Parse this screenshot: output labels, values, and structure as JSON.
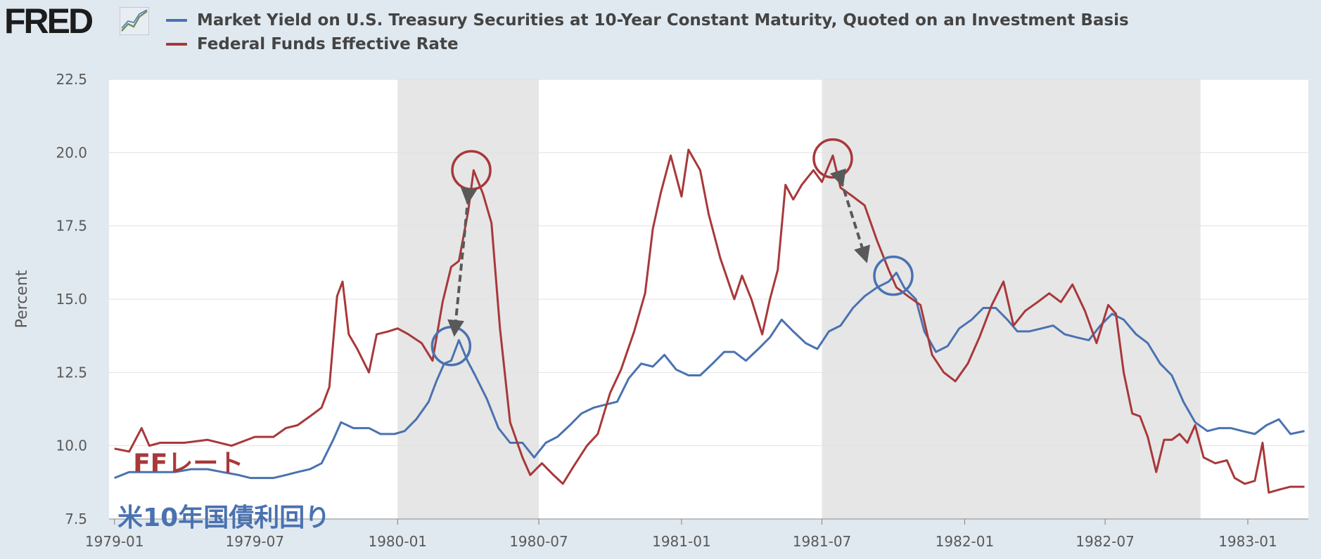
{
  "brand": {
    "logo_text": "FRED"
  },
  "colors": {
    "teny": "#4a72b0",
    "ffr": "#a8383a",
    "recession": "#e6e6e6",
    "grid": "#e2e2e2",
    "plot_bg": "#ffffff",
    "arrow": "#595959"
  },
  "chart_data": {
    "type": "line",
    "title": "",
    "xlabel": "",
    "ylabel": "Percent",
    "ylim": [
      7.5,
      22.5
    ],
    "xlim": [
      "1978-12-25",
      "1983-03-20"
    ],
    "yticks": [
      "7.5",
      "10.0",
      "12.5",
      "15.0",
      "17.5",
      "20.0",
      "22.5"
    ],
    "xticks": [
      "1979-01",
      "1979-07",
      "1980-01",
      "1980-07",
      "1981-01",
      "1981-07",
      "1982-01",
      "1982-07",
      "1983-01"
    ],
    "grid": true,
    "legend_position": "top-left",
    "recessions": [
      [
        "1980-01-01",
        "1980-07-01"
      ],
      [
        "1981-07-01",
        "1982-11-01"
      ]
    ],
    "series": [
      {
        "name": "Market Yield on U.S. Treasury Securities at 10-Year Constant Maturity, Quoted on an Investment Basis",
        "key": "teny",
        "points": [
          [
            "1979-01-01",
            8.9
          ],
          [
            "1979-01-20",
            9.1
          ],
          [
            "1979-02-10",
            9.1
          ],
          [
            "1979-03-01",
            9.1
          ],
          [
            "1979-03-20",
            9.1
          ],
          [
            "1979-04-10",
            9.2
          ],
          [
            "1979-05-01",
            9.2
          ],
          [
            "1979-05-20",
            9.1
          ],
          [
            "1979-06-10",
            9.0
          ],
          [
            "1979-06-25",
            8.9
          ],
          [
            "1979-07-10",
            8.9
          ],
          [
            "1979-07-25",
            8.9
          ],
          [
            "1979-08-10",
            9.0
          ],
          [
            "1979-08-25",
            9.1
          ],
          [
            "1979-09-10",
            9.2
          ],
          [
            "1979-09-25",
            9.4
          ],
          [
            "1979-10-10",
            10.2
          ],
          [
            "1979-10-20",
            10.8
          ],
          [
            "1979-11-05",
            10.6
          ],
          [
            "1979-11-25",
            10.6
          ],
          [
            "1979-12-10",
            10.4
          ],
          [
            "1979-12-28",
            10.4
          ],
          [
            "1980-01-10",
            10.5
          ],
          [
            "1980-01-25",
            10.9
          ],
          [
            "1980-02-10",
            11.5
          ],
          [
            "1980-02-20",
            12.2
          ],
          [
            "1980-03-01",
            12.8
          ],
          [
            "1980-03-10",
            12.9
          ],
          [
            "1980-03-20",
            13.6
          ],
          [
            "1980-03-31",
            12.9
          ],
          [
            "1980-04-10",
            12.4
          ],
          [
            "1980-04-25",
            11.6
          ],
          [
            "1980-05-10",
            10.6
          ],
          [
            "1980-05-25",
            10.1
          ],
          [
            "1980-06-10",
            10.1
          ],
          [
            "1980-06-25",
            9.6
          ],
          [
            "1980-07-10",
            10.1
          ],
          [
            "1980-07-25",
            10.3
          ],
          [
            "1980-08-10",
            10.7
          ],
          [
            "1980-08-25",
            11.1
          ],
          [
            "1980-09-10",
            11.3
          ],
          [
            "1980-09-25",
            11.4
          ],
          [
            "1980-10-10",
            11.5
          ],
          [
            "1980-10-25",
            12.3
          ],
          [
            "1980-11-10",
            12.8
          ],
          [
            "1980-11-25",
            12.7
          ],
          [
            "1980-12-10",
            13.1
          ],
          [
            "1980-12-25",
            12.6
          ],
          [
            "1981-01-10",
            12.4
          ],
          [
            "1981-01-25",
            12.4
          ],
          [
            "1981-02-10",
            12.8
          ],
          [
            "1981-02-25",
            13.2
          ],
          [
            "1981-03-10",
            13.2
          ],
          [
            "1981-03-25",
            12.9
          ],
          [
            "1981-04-10",
            13.3
          ],
          [
            "1981-04-25",
            13.7
          ],
          [
            "1981-05-10",
            14.3
          ],
          [
            "1981-05-25",
            13.9
          ],
          [
            "1981-06-10",
            13.5
          ],
          [
            "1981-06-25",
            13.3
          ],
          [
            "1981-07-10",
            13.9
          ],
          [
            "1981-07-25",
            14.1
          ],
          [
            "1981-08-10",
            14.7
          ],
          [
            "1981-08-25",
            15.1
          ],
          [
            "1981-09-10",
            15.4
          ],
          [
            "1981-09-25",
            15.6
          ],
          [
            "1981-10-05",
            15.9
          ],
          [
            "1981-10-15",
            15.4
          ],
          [
            "1981-10-30",
            15.0
          ],
          [
            "1981-11-10",
            13.9
          ],
          [
            "1981-11-25",
            13.2
          ],
          [
            "1981-12-10",
            13.4
          ],
          [
            "1981-12-25",
            14.0
          ],
          [
            "1982-01-10",
            14.3
          ],
          [
            "1982-01-25",
            14.7
          ],
          [
            "1982-02-10",
            14.7
          ],
          [
            "1982-02-25",
            14.3
          ],
          [
            "1982-03-10",
            13.9
          ],
          [
            "1982-03-25",
            13.9
          ],
          [
            "1982-04-10",
            14.0
          ],
          [
            "1982-04-25",
            14.1
          ],
          [
            "1982-05-10",
            13.8
          ],
          [
            "1982-05-25",
            13.7
          ],
          [
            "1982-06-10",
            13.6
          ],
          [
            "1982-06-25",
            14.1
          ],
          [
            "1982-07-10",
            14.5
          ],
          [
            "1982-07-25",
            14.3
          ],
          [
            "1982-08-10",
            13.8
          ],
          [
            "1982-08-25",
            13.5
          ],
          [
            "1982-09-10",
            12.8
          ],
          [
            "1982-09-25",
            12.4
          ],
          [
            "1982-10-10",
            11.5
          ],
          [
            "1982-10-25",
            10.8
          ],
          [
            "1982-11-10",
            10.5
          ],
          [
            "1982-11-25",
            10.6
          ],
          [
            "1982-12-10",
            10.6
          ],
          [
            "1982-12-25",
            10.5
          ],
          [
            "1983-01-10",
            10.4
          ],
          [
            "1983-01-25",
            10.7
          ],
          [
            "1983-02-10",
            10.9
          ],
          [
            "1983-02-25",
            10.4
          ],
          [
            "1983-03-15",
            10.5
          ]
        ]
      },
      {
        "name": "Federal Funds Effective Rate",
        "key": "ffr",
        "points": [
          [
            "1979-01-01",
            9.9
          ],
          [
            "1979-01-20",
            9.8
          ],
          [
            "1979-02-05",
            10.6
          ],
          [
            "1979-02-15",
            10.0
          ],
          [
            "1979-03-01",
            10.1
          ],
          [
            "1979-04-01",
            10.1
          ],
          [
            "1979-05-01",
            10.2
          ],
          [
            "1979-06-01",
            10.0
          ],
          [
            "1979-07-01",
            10.3
          ],
          [
            "1979-07-25",
            10.3
          ],
          [
            "1979-08-10",
            10.6
          ],
          [
            "1979-08-25",
            10.7
          ],
          [
            "1979-09-10",
            11.0
          ],
          [
            "1979-09-25",
            11.3
          ],
          [
            "1979-10-05",
            12.0
          ],
          [
            "1979-10-15",
            15.1
          ],
          [
            "1979-10-22",
            15.6
          ],
          [
            "1979-10-30",
            13.8
          ],
          [
            "1979-11-10",
            13.3
          ],
          [
            "1979-11-25",
            12.5
          ],
          [
            "1979-12-05",
            13.8
          ],
          [
            "1979-12-20",
            13.9
          ],
          [
            "1980-01-01",
            14.0
          ],
          [
            "1980-01-15",
            13.8
          ],
          [
            "1980-02-01",
            13.5
          ],
          [
            "1980-02-15",
            12.9
          ],
          [
            "1980-02-28",
            14.9
          ],
          [
            "1980-03-10",
            16.1
          ],
          [
            "1980-03-20",
            16.3
          ],
          [
            "1980-04-01",
            18.0
          ],
          [
            "1980-04-08",
            19.4
          ],
          [
            "1980-04-20",
            18.6
          ],
          [
            "1980-05-01",
            17.6
          ],
          [
            "1980-05-12",
            14.0
          ],
          [
            "1980-05-25",
            10.8
          ],
          [
            "1980-06-10",
            9.6
          ],
          [
            "1980-06-20",
            9.0
          ],
          [
            "1980-07-05",
            9.4
          ],
          [
            "1980-07-20",
            9.0
          ],
          [
            "1980-08-01",
            8.7
          ],
          [
            "1980-08-15",
            9.3
          ],
          [
            "1980-09-01",
            10.0
          ],
          [
            "1980-09-15",
            10.4
          ],
          [
            "1980-10-01",
            11.8
          ],
          [
            "1980-10-15",
            12.6
          ],
          [
            "1980-11-01",
            13.9
          ],
          [
            "1980-11-15",
            15.2
          ],
          [
            "1980-11-25",
            17.4
          ],
          [
            "1980-12-05",
            18.6
          ],
          [
            "1980-12-18",
            19.9
          ],
          [
            "1981-01-01",
            18.5
          ],
          [
            "1981-01-10",
            20.1
          ],
          [
            "1981-01-25",
            19.4
          ],
          [
            "1981-02-05",
            17.9
          ],
          [
            "1981-02-20",
            16.4
          ],
          [
            "1981-03-10",
            15.0
          ],
          [
            "1981-03-20",
            15.8
          ],
          [
            "1981-04-01",
            15.0
          ],
          [
            "1981-04-15",
            13.8
          ],
          [
            "1981-04-25",
            15.0
          ],
          [
            "1981-05-05",
            16.0
          ],
          [
            "1981-05-15",
            18.9
          ],
          [
            "1981-05-25",
            18.4
          ],
          [
            "1981-06-05",
            18.9
          ],
          [
            "1981-06-20",
            19.4
          ],
          [
            "1981-07-01",
            19.0
          ],
          [
            "1981-07-15",
            19.9
          ],
          [
            "1981-07-25",
            18.8
          ],
          [
            "1981-08-10",
            18.5
          ],
          [
            "1981-08-25",
            18.2
          ],
          [
            "1981-09-10",
            17.0
          ],
          [
            "1981-09-25",
            16.0
          ],
          [
            "1981-10-05",
            15.4
          ],
          [
            "1981-10-20",
            15.1
          ],
          [
            "1981-11-05",
            14.8
          ],
          [
            "1981-11-20",
            13.1
          ],
          [
            "1981-12-05",
            12.5
          ],
          [
            "1981-12-20",
            12.2
          ],
          [
            "1982-01-05",
            12.8
          ],
          [
            "1982-01-20",
            13.7
          ],
          [
            "1982-02-05",
            14.8
          ],
          [
            "1982-02-20",
            15.6
          ],
          [
            "1982-03-05",
            14.1
          ],
          [
            "1982-03-20",
            14.6
          ],
          [
            "1982-04-05",
            14.9
          ],
          [
            "1982-04-20",
            15.2
          ],
          [
            "1982-05-05",
            14.9
          ],
          [
            "1982-05-20",
            15.5
          ],
          [
            "1982-06-05",
            14.6
          ],
          [
            "1982-06-20",
            13.5
          ],
          [
            "1982-07-05",
            14.8
          ],
          [
            "1982-07-15",
            14.5
          ],
          [
            "1982-07-25",
            12.5
          ],
          [
            "1982-08-05",
            11.1
          ],
          [
            "1982-08-15",
            11.0
          ],
          [
            "1982-08-25",
            10.3
          ],
          [
            "1982-09-05",
            9.1
          ],
          [
            "1982-09-15",
            10.2
          ],
          [
            "1982-09-25",
            10.2
          ],
          [
            "1982-10-05",
            10.4
          ],
          [
            "1982-10-15",
            10.1
          ],
          [
            "1982-10-25",
            10.7
          ],
          [
            "1982-11-05",
            9.6
          ],
          [
            "1982-11-20",
            9.4
          ],
          [
            "1982-12-05",
            9.5
          ],
          [
            "1982-12-15",
            8.9
          ],
          [
            "1982-12-28",
            8.7
          ],
          [
            "1983-01-10",
            8.8
          ],
          [
            "1983-01-20",
            10.1
          ],
          [
            "1983-01-28",
            8.4
          ],
          [
            "1983-02-10",
            8.5
          ],
          [
            "1983-02-25",
            8.6
          ],
          [
            "1983-03-15",
            8.6
          ]
        ]
      }
    ],
    "annotations": [
      {
        "text": "FFレート",
        "key": "ffr",
        "x": "1979-01-25",
        "y": 9.4
      },
      {
        "text": "米10年国債利回り",
        "key": "teny",
        "x": "1979-01-05",
        "y": 7.55
      }
    ],
    "highlight_circles": [
      {
        "key": "teny",
        "x": "1980-03-10",
        "y": 13.4
      },
      {
        "key": "ffr",
        "x": "1980-04-05",
        "y": 19.4
      },
      {
        "key": "ffr",
        "x": "1981-07-15",
        "y": 19.8
      },
      {
        "key": "teny",
        "x": "1981-10-01",
        "y": 15.8
      }
    ],
    "arrows": [
      {
        "from": [
          "1980-04-01",
          18.5
        ],
        "to": [
          "1980-03-15",
          14.0
        ]
      },
      {
        "from": [
          "1981-07-25",
          19.1
        ],
        "to": [
          "1981-08-25",
          16.5
        ]
      }
    ]
  }
}
